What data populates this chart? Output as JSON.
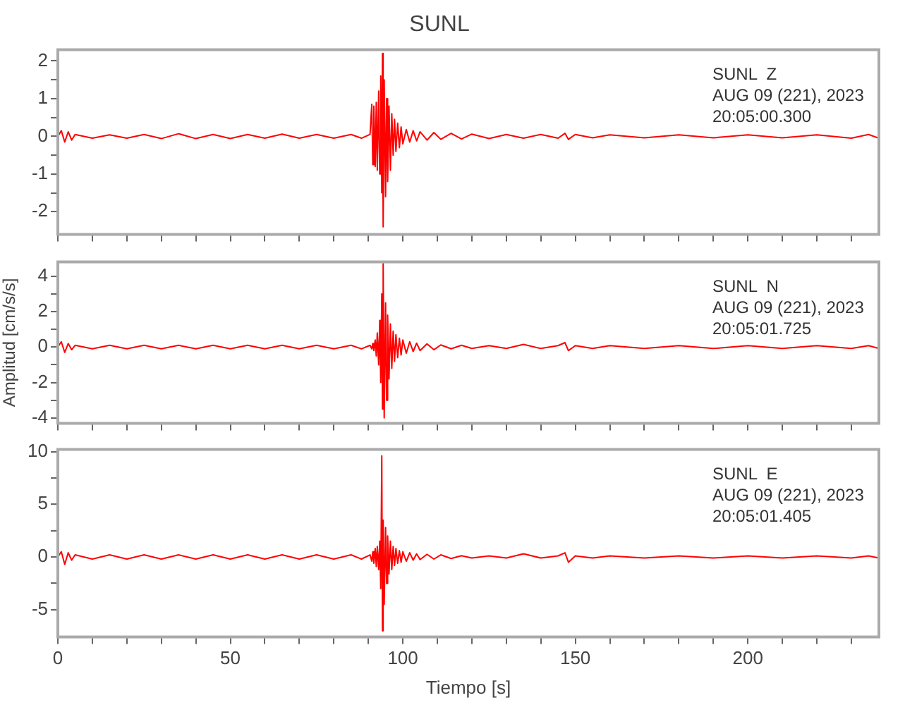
{
  "chart_data": [
    {
      "type": "line",
      "title": "SUNL",
      "annotations": [
        "SUNL  Z",
        "AUG 09 (221), 2023",
        "20:05:00.300"
      ],
      "x": [
        0,
        1,
        2,
        3,
        4,
        5,
        10,
        15,
        20,
        25,
        30,
        35,
        40,
        45,
        50,
        55,
        60,
        65,
        70,
        75,
        80,
        85,
        88,
        90.5,
        91,
        91.3,
        91.6,
        92,
        92.3,
        92.6,
        93,
        93.3,
        93.6,
        93.9,
        94.1,
        94.3,
        94.6,
        95,
        95.3,
        95.6,
        96,
        96.4,
        96.8,
        97.2,
        97.6,
        98,
        98.5,
        99,
        99.5,
        100,
        101,
        102,
        103,
        104,
        105,
        107,
        109,
        111,
        114,
        117,
        120,
        125,
        130,
        135,
        140,
        145,
        147,
        148,
        150,
        155,
        160,
        170,
        180,
        190,
        200,
        210,
        220,
        230,
        235,
        238
      ],
      "series": [
        {
          "color": "#ff0000",
          "values": [
            0,
            0.15,
            -0.15,
            0.12,
            -0.1,
            0.05,
            -0.05,
            0.04,
            -0.05,
            0.05,
            -0.06,
            0.07,
            -0.06,
            0.05,
            -0.06,
            0.05,
            -0.05,
            0.06,
            -0.05,
            0.05,
            -0.05,
            0.05,
            -0.05,
            0.05,
            0.85,
            -0.75,
            0.8,
            -0.8,
            0.9,
            -0.9,
            1.2,
            -1.0,
            1.6,
            -1.5,
            2.2,
            -2.4,
            1.5,
            -1.6,
            1.0,
            -1.2,
            0.8,
            -0.9,
            0.6,
            -0.5,
            0.45,
            -0.4,
            0.35,
            -0.3,
            0.25,
            -0.2,
            0.18,
            -0.15,
            0.15,
            -0.12,
            0.12,
            -0.1,
            0.1,
            -0.08,
            0.08,
            -0.07,
            0.06,
            -0.06,
            0.05,
            -0.05,
            0.05,
            -0.05,
            0.08,
            -0.08,
            0.05,
            -0.04,
            0.04,
            -0.04,
            0.04,
            -0.04,
            0.04,
            -0.04,
            0.04,
            -0.05,
            0.05,
            -0.05
          ]
        }
      ],
      "xlim": [
        0,
        238
      ],
      "xticks": [
        0,
        {
          "value": 10,
          "label": null
        },
        {
          "value": 20,
          "label": null
        },
        {
          "value": 30,
          "label": null
        },
        {
          "value": 40,
          "label": null
        },
        50,
        {
          "value": 60,
          "label": null
        },
        {
          "value": 70,
          "label": null
        },
        {
          "value": 80,
          "label": null
        },
        {
          "value": 90,
          "label": null
        },
        100,
        {
          "value": 110,
          "label": null
        },
        {
          "value": 120,
          "label": null
        },
        {
          "value": 130,
          "label": null
        },
        {
          "value": 140,
          "label": null
        },
        150,
        {
          "value": 160,
          "label": null
        },
        {
          "value": 170,
          "label": null
        },
        {
          "value": 180,
          "label": null
        },
        {
          "value": 190,
          "label": null
        },
        200,
        {
          "value": 210,
          "label": null
        },
        {
          "value": 220,
          "label": null
        },
        {
          "value": 230,
          "label": null
        }
      ],
      "ylim": [
        -2.6,
        2.3
      ],
      "yticks": [
        -2,
        {
          "value": -1.5,
          "label": null
        },
        -1,
        {
          "value": -0.5,
          "label": null
        },
        0,
        {
          "value": 0.5,
          "label": null
        },
        1,
        {
          "value": 1.5,
          "label": null
        },
        2
      ],
      "tick_labels": "y",
      "grid": false,
      "legend": false,
      "marker": "none",
      "line_style": "solid"
    },
    {
      "type": "line",
      "ylabel": "Amplitud [cm/s/s]",
      "annotations": [
        "SUNL  N",
        "AUG 09 (221), 2023",
        "20:05:01.725"
      ],
      "x": [
        0,
        1,
        2,
        3,
        4,
        5,
        10,
        15,
        20,
        25,
        30,
        35,
        40,
        45,
        50,
        55,
        60,
        65,
        70,
        75,
        80,
        85,
        88,
        90.5,
        91,
        91.3,
        91.6,
        92,
        92.3,
        92.6,
        93,
        93.3,
        93.6,
        93.9,
        94.1,
        94.3,
        94.6,
        95,
        95.3,
        95.6,
        96,
        96.4,
        96.8,
        97.2,
        97.6,
        98,
        98.5,
        99,
        99.5,
        100,
        101,
        102,
        103,
        104,
        105,
        107,
        109,
        111,
        114,
        117,
        120,
        125,
        130,
        135,
        140,
        145,
        147,
        148,
        150,
        155,
        160,
        170,
        180,
        190,
        200,
        210,
        220,
        230,
        235,
        238
      ],
      "series": [
        {
          "color": "#ff0000",
          "values": [
            0,
            0.3,
            -0.3,
            0.2,
            -0.15,
            0.1,
            -0.1,
            0.1,
            -0.1,
            0.1,
            -0.1,
            0.1,
            -0.1,
            0.1,
            -0.1,
            0.1,
            -0.1,
            0.1,
            -0.1,
            0.1,
            -0.1,
            0.1,
            -0.1,
            0.1,
            -0.1,
            0.2,
            -0.2,
            0.4,
            -0.5,
            0.8,
            -1.0,
            1.5,
            -2.0,
            3.0,
            -3.5,
            4.7,
            -4.0,
            2.5,
            -3.0,
            1.8,
            -1.8,
            1.3,
            -1.2,
            0.9,
            -0.8,
            0.7,
            -0.6,
            0.5,
            -0.45,
            0.4,
            -0.35,
            0.3,
            -0.25,
            0.22,
            -0.2,
            0.18,
            -0.15,
            0.12,
            -0.1,
            0.1,
            -0.08,
            0.08,
            -0.08,
            0.15,
            -0.08,
            0.08,
            0.25,
            -0.2,
            0.08,
            -0.08,
            0.08,
            -0.08,
            0.08,
            -0.08,
            0.08,
            -0.08,
            0.08,
            -0.08,
            0.08,
            -0.08
          ]
        }
      ],
      "xlim": [
        0,
        238
      ],
      "xticks": [
        0,
        {
          "value": 10,
          "label": null
        },
        {
          "value": 20,
          "label": null
        },
        {
          "value": 30,
          "label": null
        },
        {
          "value": 40,
          "label": null
        },
        50,
        {
          "value": 60,
          "label": null
        },
        {
          "value": 70,
          "label": null
        },
        {
          "value": 80,
          "label": null
        },
        {
          "value": 90,
          "label": null
        },
        100,
        {
          "value": 110,
          "label": null
        },
        {
          "value": 120,
          "label": null
        },
        {
          "value": 130,
          "label": null
        },
        {
          "value": 140,
          "label": null
        },
        150,
        {
          "value": 160,
          "label": null
        },
        {
          "value": 170,
          "label": null
        },
        {
          "value": 180,
          "label": null
        },
        {
          "value": 190,
          "label": null
        },
        200,
        {
          "value": 210,
          "label": null
        },
        {
          "value": 220,
          "label": null
        },
        {
          "value": 230,
          "label": null
        }
      ],
      "ylim": [
        -4.3,
        4.8
      ],
      "yticks": [
        -4,
        {
          "value": -3,
          "label": null
        },
        -2,
        {
          "value": -1,
          "label": null
        },
        0,
        {
          "value": 1,
          "label": null
        },
        2,
        {
          "value": 3,
          "label": null
        },
        4
      ],
      "tick_labels": "y",
      "grid": false,
      "legend": false,
      "marker": "none",
      "line_style": "solid"
    },
    {
      "type": "line",
      "xlabel": "Tiempo [s]",
      "annotations": [
        "SUNL  E",
        "AUG 09 (221), 2023",
        "20:05:01.405"
      ],
      "x": [
        0,
        1,
        2,
        3,
        4,
        5,
        10,
        15,
        20,
        25,
        30,
        35,
        40,
        45,
        50,
        55,
        60,
        65,
        70,
        75,
        80,
        85,
        88,
        90.5,
        91,
        91.3,
        91.6,
        92,
        92.3,
        92.6,
        93,
        93.3,
        93.6,
        93.9,
        94.1,
        94.3,
        94.6,
        95,
        95.3,
        95.6,
        96,
        96.4,
        96.8,
        97.2,
        97.6,
        98,
        98.5,
        99,
        99.5,
        100,
        101,
        102,
        103,
        104,
        105,
        107,
        109,
        111,
        114,
        117,
        120,
        125,
        130,
        135,
        140,
        145,
        147,
        148,
        150,
        155,
        160,
        170,
        180,
        190,
        200,
        210,
        220,
        230,
        235,
        238
      ],
      "series": [
        {
          "color": "#ff0000",
          "values": [
            0,
            0.5,
            -0.7,
            0.4,
            -0.3,
            0.2,
            -0.2,
            0.2,
            -0.2,
            0.2,
            -0.2,
            0.2,
            -0.2,
            0.2,
            -0.2,
            0.2,
            -0.2,
            0.2,
            -0.2,
            0.2,
            -0.2,
            0.2,
            -0.2,
            0.2,
            -0.4,
            0.5,
            -0.6,
            0.8,
            -0.9,
            1.0,
            -1.2,
            1.5,
            -3.0,
            9.6,
            -7.0,
            3.5,
            -4.5,
            2.8,
            -2.5,
            2.0,
            -1.6,
            1.5,
            -1.2,
            1.0,
            -0.8,
            0.8,
            -0.6,
            0.6,
            -0.5,
            0.5,
            -0.4,
            0.4,
            -0.3,
            0.3,
            -0.25,
            0.25,
            -0.2,
            0.2,
            -0.15,
            0.12,
            -0.1,
            0.1,
            -0.1,
            0.3,
            -0.1,
            0.1,
            0.4,
            -0.5,
            0.1,
            -0.1,
            0.1,
            -0.1,
            0.1,
            -0.1,
            0.1,
            -0.1,
            0.1,
            -0.1,
            0.1,
            -0.1
          ]
        }
      ],
      "xlim": [
        0,
        238
      ],
      "xticks": [
        0,
        {
          "value": 10,
          "label": null
        },
        {
          "value": 20,
          "label": null
        },
        {
          "value": 30,
          "label": null
        },
        {
          "value": 40,
          "label": null
        },
        50,
        {
          "value": 60,
          "label": null
        },
        {
          "value": 70,
          "label": null
        },
        {
          "value": 80,
          "label": null
        },
        {
          "value": 90,
          "label": null
        },
        100,
        {
          "value": 110,
          "label": null
        },
        {
          "value": 120,
          "label": null
        },
        {
          "value": 130,
          "label": null
        },
        {
          "value": 140,
          "label": null
        },
        150,
        {
          "value": 160,
          "label": null
        },
        {
          "value": 170,
          "label": null
        },
        {
          "value": 180,
          "label": null
        },
        {
          "value": 190,
          "label": null
        },
        200,
        {
          "value": 210,
          "label": null
        },
        {
          "value": 220,
          "label": null
        },
        {
          "value": 230,
          "label": null
        }
      ],
      "ylim": [
        -7.6,
        10.2
      ],
      "yticks": [
        -5,
        {
          "value": -2.5,
          "label": null
        },
        0,
        {
          "value": 2.5,
          "label": null
        },
        5,
        {
          "value": 7.5,
          "label": null
        },
        10
      ],
      "grid": false,
      "legend": false,
      "marker": "none",
      "line_style": "solid"
    }
  ]
}
